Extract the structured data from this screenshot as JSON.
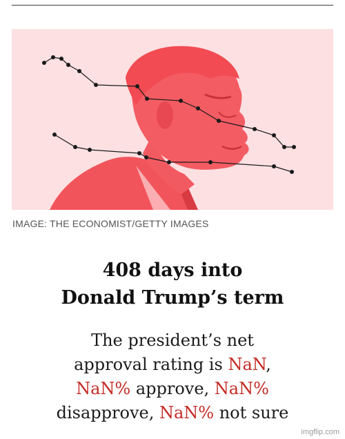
{
  "image": {
    "subject": "Donald Trump in profile",
    "tint_color": "#f2545b",
    "background_color": "#fde0e2"
  },
  "caption": "IMAGE: THE ECONOMIST/GETTY IMAGES",
  "headline": {
    "line1": "408 days into",
    "line2": "Donald Trump’s term"
  },
  "body": {
    "line1": "The president’s net",
    "line2_text": "approval rating is ",
    "line2_value": "NaN",
    "line2_end": ",",
    "line3_value1": "NaN%",
    "line3_text": " approve, ",
    "line3_value2": "NaN%",
    "line4_text": "disapprove, ",
    "line4_value": "NaN%",
    "line4_end": " not sure"
  },
  "accent_color": "#c42a24",
  "watermark": "imgflip.com"
}
